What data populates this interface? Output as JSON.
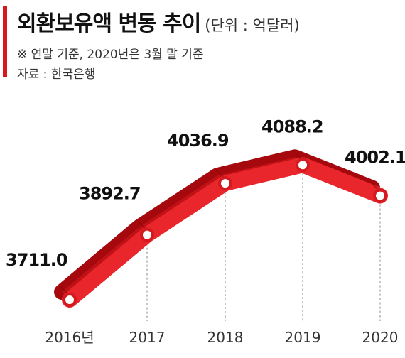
{
  "header": {
    "title": "외환보유액 변동 추이",
    "unit": "(단위 : 억달러)",
    "note": "※ 연말 기준, 2020년은 3월 말 기준",
    "source": "자료 : 한국은행"
  },
  "colors": {
    "accent": "#d41a1f",
    "ribbon_top": "#e8262b",
    "ribbon_side": "#a5090e"
  },
  "chart_data": {
    "type": "line",
    "categories": [
      "2016년",
      "2017",
      "2018",
      "2019",
      "2020"
    ],
    "values": [
      3711.0,
      3892.7,
      4036.9,
      4088.2,
      4002.1
    ],
    "value_labels": [
      "3711.0",
      "3892.7",
      "4036.9",
      "4088.2",
      "4002.1"
    ],
    "title": "외환보유액 변동 추이",
    "xlabel": "",
    "ylabel": "",
    "unit": "(단위 : 억달러)",
    "grid": false,
    "legend": "none"
  }
}
